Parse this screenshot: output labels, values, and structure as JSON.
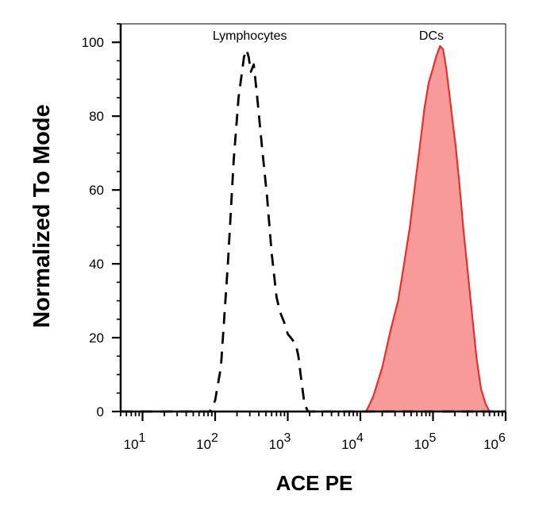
{
  "chart_data": {
    "type": "area",
    "title": "",
    "xlabel": "ACE PE",
    "ylabel": "Normalized To Mode",
    "x_scale": "log",
    "xlim": [
      5,
      1000000
    ],
    "ylim": [
      0,
      105
    ],
    "y_ticks": [
      {
        "value": 0,
        "label": "0"
      },
      {
        "value": 20,
        "label": "20"
      },
      {
        "value": 40,
        "label": "40"
      },
      {
        "value": 60,
        "label": "60"
      },
      {
        "value": 80,
        "label": "80"
      },
      {
        "value": 100,
        "label": "100"
      }
    ],
    "x_ticks": [
      {
        "value": 10,
        "base": "10",
        "exp": "1"
      },
      {
        "value": 100,
        "base": "10",
        "exp": "2"
      },
      {
        "value": 1000,
        "base": "10",
        "exp": "3"
      },
      {
        "value": 10000,
        "base": "10",
        "exp": "4"
      },
      {
        "value": 100000,
        "base": "10",
        "exp": "5"
      },
      {
        "value": 1000000,
        "base": "10",
        "exp": "6"
      }
    ],
    "grid": false,
    "legend": "none",
    "series": [
      {
        "name": "Lymphocytes",
        "style": "dashed",
        "color": "#000000",
        "fill": "none",
        "points": [
          [
            5,
            0
          ],
          [
            85,
            0
          ],
          [
            100,
            3
          ],
          [
            120,
            12
          ],
          [
            150,
            40
          ],
          [
            180,
            68
          ],
          [
            210,
            85
          ],
          [
            250,
            96
          ],
          [
            270,
            98
          ],
          [
            290,
            96
          ],
          [
            310,
            92
          ],
          [
            340,
            94
          ],
          [
            380,
            85
          ],
          [
            440,
            72
          ],
          [
            520,
            58
          ],
          [
            600,
            43
          ],
          [
            700,
            31
          ],
          [
            780,
            27
          ],
          [
            900,
            24
          ],
          [
            1000,
            21
          ],
          [
            1100,
            20
          ],
          [
            1200,
            19
          ],
          [
            1300,
            18
          ],
          [
            1400,
            15
          ],
          [
            1550,
            8
          ],
          [
            1700,
            2
          ],
          [
            1900,
            0
          ],
          [
            1000000,
            0
          ]
        ]
      },
      {
        "name": "DCs",
        "style": "solid",
        "color": "#e53030",
        "fill": "#f99a9a",
        "points": [
          [
            5,
            0
          ],
          [
            12000,
            0
          ],
          [
            15000,
            4
          ],
          [
            20000,
            12
          ],
          [
            26000,
            22
          ],
          [
            33000,
            30
          ],
          [
            40000,
            40
          ],
          [
            48000,
            50
          ],
          [
            57000,
            62
          ],
          [
            66000,
            72
          ],
          [
            76000,
            82
          ],
          [
            87000,
            89
          ],
          [
            100000,
            93
          ],
          [
            110000,
            96
          ],
          [
            125000,
            99
          ],
          [
            138000,
            98
          ],
          [
            152000,
            93
          ],
          [
            168000,
            86
          ],
          [
            185000,
            79
          ],
          [
            205000,
            72
          ],
          [
            230000,
            62
          ],
          [
            260000,
            50
          ],
          [
            300000,
            38
          ],
          [
            350000,
            25
          ],
          [
            400000,
            14
          ],
          [
            460000,
            6
          ],
          [
            530000,
            2
          ],
          [
            600000,
            0
          ],
          [
            1000000,
            0
          ]
        ]
      }
    ],
    "annotations": [
      {
        "text": "Lymphocytes",
        "x": 300,
        "y": 100
      },
      {
        "text": "DCs",
        "x": 95000,
        "y": 100
      }
    ]
  }
}
